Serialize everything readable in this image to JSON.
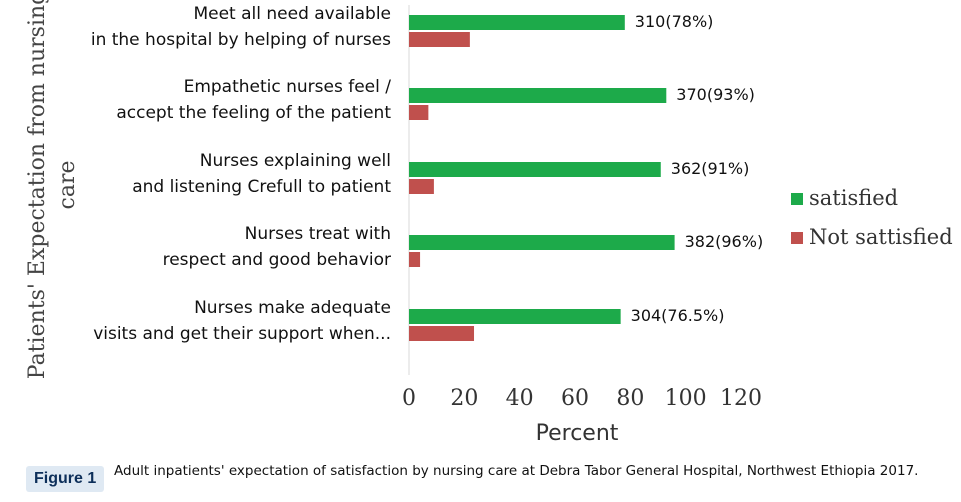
{
  "chart_data": {
    "type": "bar",
    "orientation": "horizontal",
    "ylabel": "Patients' Expectation from nursing care",
    "xlabel": "Percent",
    "xlim": [
      0,
      120
    ],
    "xticks": [
      0,
      20,
      40,
      60,
      80,
      100,
      120
    ],
    "grid": false,
    "legend_position": "right",
    "categories": [
      [
        "Meet all need available",
        "in the hospital by helping of nurses"
      ],
      [
        "Empathetic nurses feel /",
        "accept the feeling of the patient"
      ],
      [
        "Nurses explaining well",
        "and listening Crefull to patient"
      ],
      [
        "Nurses treat with",
        "respect and good behavior"
      ],
      [
        "Nurses make adequate",
        "visits and get their support when..."
      ]
    ],
    "series": [
      {
        "name": "satisfied",
        "color": "#1daa4a",
        "values": [
          78,
          93,
          91,
          96,
          76.5
        ],
        "labels": [
          "310(78%)",
          "370(93%)",
          "362(91%)",
          "382(96%)",
          "304(76.5%)"
        ]
      },
      {
        "name": "Not sattisfied",
        "color": "#c0504d",
        "values": [
          22,
          7,
          9,
          4,
          23.5
        ]
      }
    ]
  },
  "caption": {
    "badge": "Figure 1",
    "text": "Adult inpatients' expectation of satisfaction by nursing care at Debra Tabor General Hospital, Northwest Ethiopia 2017."
  }
}
